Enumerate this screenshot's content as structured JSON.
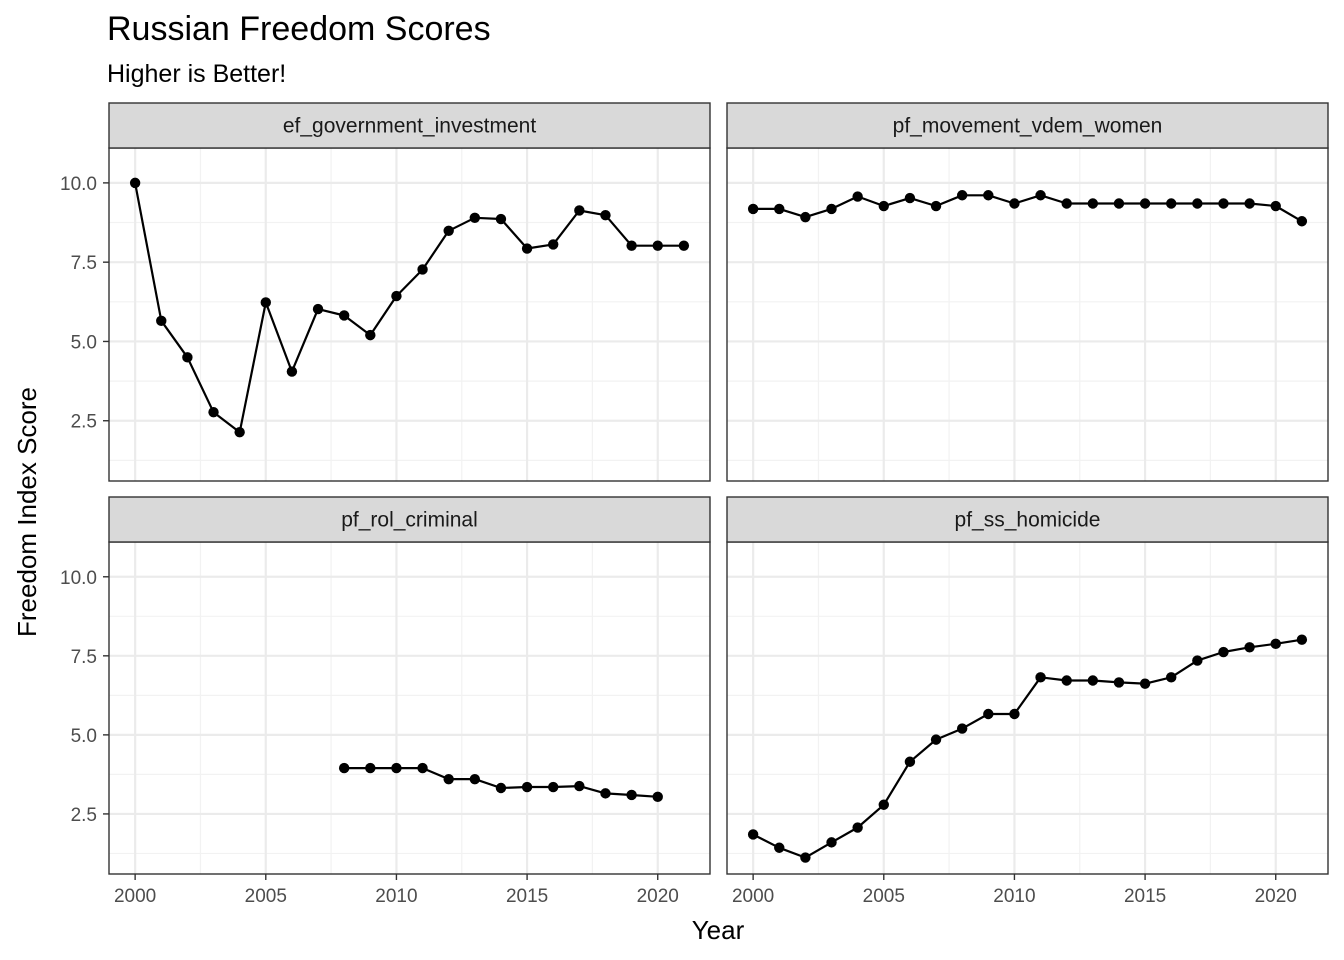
{
  "chart_data": {
    "type": "line",
    "title": "Russian Freedom Scores",
    "subtitle": "Higher is Better!",
    "xlabel": "Year",
    "ylabel": "Freedom Index Score",
    "xlim": [
      1999,
      2022
    ],
    "ylim": [
      0.6,
      11.1
    ],
    "x_ticks": [
      2000,
      2005,
      2010,
      2015,
      2020
    ],
    "y_ticks": [
      2.5,
      5.0,
      7.5,
      10.0
    ],
    "y_tick_labels": [
      "2.5",
      "5.0",
      "7.5",
      "10.0"
    ],
    "grid": true,
    "facets": [
      {
        "name": "ef_government_investment",
        "x": [
          2000,
          2001,
          2002,
          2003,
          2004,
          2005,
          2006,
          2007,
          2008,
          2009,
          2010,
          2011,
          2012,
          2013,
          2014,
          2015,
          2016,
          2017,
          2018,
          2019,
          2020,
          2021
        ],
        "y": [
          10.0,
          5.65,
          4.5,
          2.77,
          2.14,
          6.23,
          4.05,
          6.02,
          5.82,
          5.2,
          6.43,
          7.27,
          8.49,
          8.9,
          8.86,
          7.93,
          8.06,
          9.13,
          8.98,
          8.02,
          8.02,
          8.02
        ]
      },
      {
        "name": "pf_movement_vdem_women",
        "x": [
          2000,
          2001,
          2002,
          2003,
          2004,
          2005,
          2006,
          2007,
          2008,
          2009,
          2010,
          2011,
          2012,
          2013,
          2014,
          2015,
          2016,
          2017,
          2018,
          2019,
          2020,
          2021
        ],
        "y": [
          9.18,
          9.18,
          8.92,
          9.18,
          9.57,
          9.27,
          9.52,
          9.27,
          9.61,
          9.61,
          9.35,
          9.61,
          9.35,
          9.35,
          9.35,
          9.35,
          9.35,
          9.35,
          9.35,
          9.35,
          9.27,
          8.79
        ]
      },
      {
        "name": "pf_rol_criminal",
        "x": [
          2008,
          2009,
          2010,
          2011,
          2012,
          2013,
          2014,
          2015,
          2016,
          2017,
          2018,
          2019,
          2020
        ],
        "y": [
          3.95,
          3.95,
          3.95,
          3.95,
          3.6,
          3.6,
          3.32,
          3.35,
          3.35,
          3.38,
          3.15,
          3.1,
          3.04
        ]
      },
      {
        "name": "pf_ss_homicide",
        "x": [
          2000,
          2001,
          2002,
          2003,
          2004,
          2005,
          2006,
          2007,
          2008,
          2009,
          2010,
          2011,
          2012,
          2013,
          2014,
          2015,
          2016,
          2017,
          2018,
          2019,
          2020,
          2021
        ],
        "y": [
          1.85,
          1.43,
          1.12,
          1.6,
          2.07,
          2.79,
          4.15,
          4.85,
          5.2,
          5.66,
          5.66,
          6.82,
          6.72,
          6.72,
          6.66,
          6.62,
          6.82,
          7.35,
          7.62,
          7.77,
          7.88,
          8.01
        ]
      }
    ]
  }
}
